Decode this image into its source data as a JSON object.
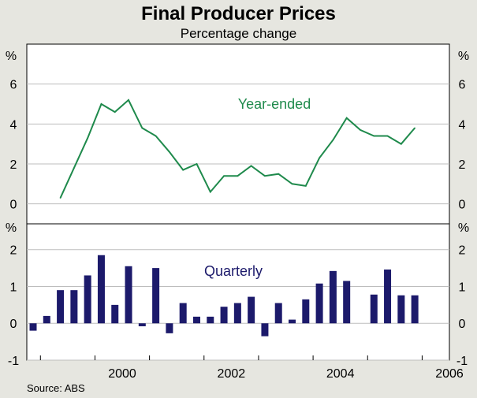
{
  "title": "Final Producer Prices",
  "subtitle": "Percentage change",
  "source": "Source: ABS",
  "colors": {
    "background": "#e6e6e0",
    "plot": "#ffffff",
    "line": "#1f8a4c",
    "bar": "#1c1a6b",
    "grid": "#bdbdbd"
  },
  "chart_data": [
    {
      "type": "line",
      "panel": "top",
      "series_name": "Year-ended",
      "unit": "%",
      "ylim": [
        -1,
        8
      ],
      "yticks": [
        0,
        2,
        4,
        6
      ],
      "x": [
        1999.25,
        1999.5,
        1999.75,
        2000.0,
        2000.25,
        2000.5,
        2000.75,
        2001.0,
        2001.25,
        2001.5,
        2001.75,
        2002.0,
        2002.25,
        2002.5,
        2002.75,
        2003.0,
        2003.25,
        2003.5,
        2003.75,
        2004.0,
        2004.25,
        2004.5,
        2004.75,
        2005.0,
        2005.25,
        2005.5,
        2005.75
      ],
      "values": [
        0.3,
        1.8,
        3.3,
        5.0,
        4.6,
        5.2,
        3.8,
        3.4,
        2.6,
        1.7,
        2.0,
        0.6,
        1.4,
        1.4,
        1.9,
        1.4,
        1.5,
        1.0,
        0.9,
        2.3,
        3.2,
        4.3,
        3.7,
        3.4,
        3.4,
        3.0,
        3.8
      ]
    },
    {
      "type": "bar",
      "panel": "bottom",
      "series_name": "Quarterly",
      "unit": "%",
      "ylim": [
        -1,
        2.7
      ],
      "yticks": [
        -1,
        0,
        1,
        2
      ],
      "x": [
        1998.75,
        1999.0,
        1999.25,
        1999.5,
        1999.75,
        2000.0,
        2000.25,
        2000.5,
        2000.75,
        2001.0,
        2001.25,
        2001.5,
        2001.75,
        2002.0,
        2002.25,
        2002.5,
        2002.75,
        2003.0,
        2003.25,
        2003.5,
        2003.75,
        2004.0,
        2004.25,
        2004.5,
        2005.0,
        2005.25,
        2005.5,
        2005.75
      ],
      "values": [
        -0.2,
        0.2,
        0.9,
        0.9,
        1.3,
        1.85,
        0.5,
        1.55,
        -0.08,
        1.5,
        -0.27,
        0.55,
        0.18,
        0.18,
        0.45,
        0.55,
        0.72,
        -0.35,
        0.55,
        0.1,
        0.65,
        1.08,
        1.42,
        1.15,
        0.78,
        1.46,
        0.76,
        0.76
      ]
    }
  ],
  "x_axis": {
    "ticks": [
      "2000",
      "2002",
      "2004",
      "2006"
    ],
    "tick_values": [
      2000,
      2002,
      2004,
      2006
    ],
    "range": [
      1998.75,
      2006.5
    ]
  }
}
